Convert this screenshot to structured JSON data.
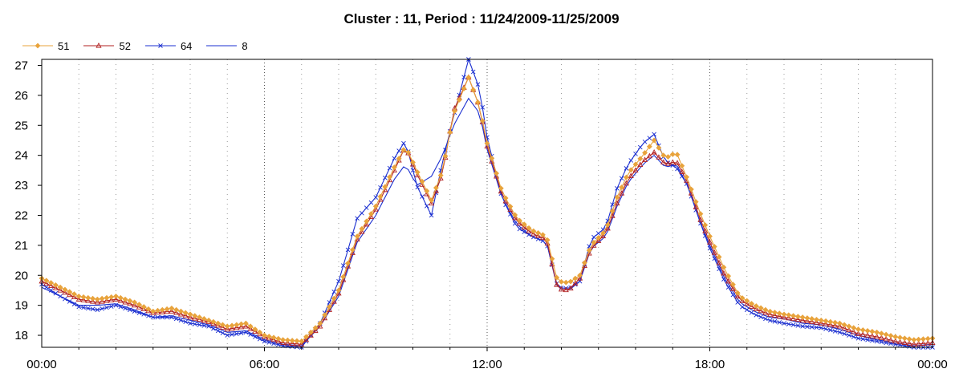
{
  "chart_data": {
    "type": "line",
    "title": "Cluster : 11, Period : 11/24/2009-11/25/2009",
    "xlabel": "",
    "ylabel": "",
    "xlim": [
      0,
      24
    ],
    "ylim": [
      17.6,
      27.2
    ],
    "x_ticks": [
      {
        "value": 0,
        "label": "00:00"
      },
      {
        "value": 6,
        "label": "06:00"
      },
      {
        "value": 12,
        "label": "12:00"
      },
      {
        "value": 18,
        "label": "18:00"
      },
      {
        "value": 24,
        "label": "00:00"
      }
    ],
    "y_ticks": [
      18,
      19,
      20,
      21,
      22,
      23,
      24,
      25,
      26,
      27
    ],
    "grid": "vertical dotted",
    "legend_position": "top-left",
    "sample_interval_hours": 0.125,
    "series": [
      {
        "name": "51",
        "color": "#e8a33c",
        "marker": "diamond",
        "points": [
          [
            0,
            19.9
          ],
          [
            0.5,
            19.6
          ],
          [
            1,
            19.3
          ],
          [
            1.5,
            19.2
          ],
          [
            2,
            19.3
          ],
          [
            2.5,
            19.1
          ],
          [
            3,
            18.8
          ],
          [
            3.5,
            18.9
          ],
          [
            4,
            18.7
          ],
          [
            4.5,
            18.5
          ],
          [
            5,
            18.3
          ],
          [
            5.5,
            18.4
          ],
          [
            6,
            18.0
          ],
          [
            6.5,
            17.85
          ],
          [
            7,
            17.8
          ],
          [
            7.5,
            18.4
          ],
          [
            8,
            19.5
          ],
          [
            8.5,
            21.3
          ],
          [
            9,
            22.3
          ],
          [
            9.5,
            23.6
          ],
          [
            9.8,
            24.3
          ],
          [
            10.1,
            23.5
          ],
          [
            10.5,
            22.5
          ],
          [
            10.8,
            23.5
          ],
          [
            11.1,
            25.4
          ],
          [
            11.5,
            26.6
          ],
          [
            11.8,
            25.6
          ],
          [
            12,
            24.4
          ],
          [
            12.4,
            22.8
          ],
          [
            12.8,
            21.9
          ],
          [
            13.2,
            21.5
          ],
          [
            13.6,
            21.3
          ],
          [
            13.9,
            19.8
          ],
          [
            14.2,
            19.75
          ],
          [
            14.5,
            20.0
          ],
          [
            14.8,
            21.0
          ],
          [
            15.2,
            21.5
          ],
          [
            15.5,
            22.6
          ],
          [
            15.8,
            23.4
          ],
          [
            16.2,
            24.0
          ],
          [
            16.5,
            24.5
          ],
          [
            16.8,
            23.9
          ],
          [
            17.1,
            24.1
          ],
          [
            17.4,
            23.2
          ],
          [
            17.7,
            22.2
          ],
          [
            18.0,
            21.3
          ],
          [
            18.4,
            20.2
          ],
          [
            18.8,
            19.3
          ],
          [
            19.2,
            19.0
          ],
          [
            19.6,
            18.8
          ],
          [
            20,
            18.7
          ],
          [
            20.5,
            18.6
          ],
          [
            21,
            18.5
          ],
          [
            21.5,
            18.4
          ],
          [
            22,
            18.2
          ],
          [
            22.5,
            18.1
          ],
          [
            23,
            17.95
          ],
          [
            23.5,
            17.85
          ],
          [
            24,
            17.9
          ]
        ]
      },
      {
        "name": "52",
        "color": "#b22222",
        "marker": "triangle",
        "points": [
          [
            0,
            19.8
          ],
          [
            0.5,
            19.5
          ],
          [
            1,
            19.2
          ],
          [
            1.5,
            19.1
          ],
          [
            2,
            19.2
          ],
          [
            2.5,
            19.0
          ],
          [
            3,
            18.75
          ],
          [
            3.5,
            18.8
          ],
          [
            4,
            18.6
          ],
          [
            4.5,
            18.45
          ],
          [
            5,
            18.2
          ],
          [
            5.5,
            18.3
          ],
          [
            6,
            17.95
          ],
          [
            6.5,
            17.75
          ],
          [
            7,
            17.7
          ],
          [
            7.5,
            18.3
          ],
          [
            8,
            19.4
          ],
          [
            8.5,
            21.2
          ],
          [
            9,
            22.2
          ],
          [
            9.5,
            23.5
          ],
          [
            9.8,
            24.3
          ],
          [
            10.1,
            23.4
          ],
          [
            10.5,
            22.4
          ],
          [
            10.8,
            23.4
          ],
          [
            11.1,
            25.5
          ],
          [
            11.5,
            26.6
          ],
          [
            11.8,
            25.6
          ],
          [
            12,
            24.3
          ],
          [
            12.4,
            22.7
          ],
          [
            12.8,
            21.8
          ],
          [
            13.2,
            21.4
          ],
          [
            13.6,
            21.2
          ],
          [
            13.9,
            19.55
          ],
          [
            14.2,
            19.5
          ],
          [
            14.5,
            19.9
          ],
          [
            14.8,
            20.9
          ],
          [
            15.2,
            21.4
          ],
          [
            15.5,
            22.4
          ],
          [
            15.8,
            23.2
          ],
          [
            16.2,
            23.8
          ],
          [
            16.5,
            24.1
          ],
          [
            16.8,
            23.7
          ],
          [
            17.1,
            23.8
          ],
          [
            17.4,
            23.1
          ],
          [
            17.7,
            22.0
          ],
          [
            18.0,
            21.1
          ],
          [
            18.4,
            20.0
          ],
          [
            18.8,
            19.2
          ],
          [
            19.2,
            18.9
          ],
          [
            19.6,
            18.7
          ],
          [
            20,
            18.6
          ],
          [
            20.5,
            18.5
          ],
          [
            21,
            18.4
          ],
          [
            21.5,
            18.3
          ],
          [
            22,
            18.05
          ],
          [
            22.5,
            17.95
          ],
          [
            23,
            17.8
          ],
          [
            23.5,
            17.7
          ],
          [
            24,
            17.75
          ]
        ]
      },
      {
        "name": "64",
        "color": "#1b2fd0",
        "marker": "x",
        "points": [
          [
            0,
            19.7
          ],
          [
            0.5,
            19.3
          ],
          [
            1,
            18.95
          ],
          [
            1.5,
            18.85
          ],
          [
            2,
            19.0
          ],
          [
            2.5,
            18.8
          ],
          [
            3,
            18.6
          ],
          [
            3.5,
            18.6
          ],
          [
            4,
            18.4
          ],
          [
            4.5,
            18.3
          ],
          [
            5,
            18.0
          ],
          [
            5.5,
            18.1
          ],
          [
            6,
            17.8
          ],
          [
            6.5,
            17.65
          ],
          [
            7,
            17.6
          ],
          [
            7.5,
            18.4
          ],
          [
            8,
            19.8
          ],
          [
            8.5,
            21.9
          ],
          [
            9,
            22.6
          ],
          [
            9.5,
            23.9
          ],
          [
            9.8,
            24.5
          ],
          [
            10.1,
            23.0
          ],
          [
            10.5,
            22.0
          ],
          [
            10.8,
            23.8
          ],
          [
            11.1,
            25.3
          ],
          [
            11.5,
            27.2
          ],
          [
            11.8,
            26.2
          ],
          [
            12,
            24.6
          ],
          [
            12.4,
            22.6
          ],
          [
            12.8,
            21.6
          ],
          [
            13.2,
            21.3
          ],
          [
            13.6,
            21.1
          ],
          [
            13.9,
            19.6
          ],
          [
            14.2,
            19.55
          ],
          [
            14.5,
            19.8
          ],
          [
            14.8,
            21.2
          ],
          [
            15.2,
            21.6
          ],
          [
            15.5,
            22.9
          ],
          [
            15.8,
            23.7
          ],
          [
            16.2,
            24.4
          ],
          [
            16.5,
            24.7
          ],
          [
            16.8,
            23.8
          ],
          [
            17.1,
            23.6
          ],
          [
            17.4,
            23.0
          ],
          [
            17.7,
            21.9
          ],
          [
            18.0,
            20.9
          ],
          [
            18.4,
            19.8
          ],
          [
            18.8,
            19.0
          ],
          [
            19.2,
            18.7
          ],
          [
            19.6,
            18.5
          ],
          [
            20,
            18.4
          ],
          [
            20.5,
            18.3
          ],
          [
            21,
            18.25
          ],
          [
            21.5,
            18.1
          ],
          [
            22,
            17.9
          ],
          [
            22.5,
            17.8
          ],
          [
            23,
            17.7
          ],
          [
            23.5,
            17.6
          ],
          [
            24,
            17.6
          ]
        ]
      },
      {
        "name": "8",
        "color": "#1b2fd0",
        "marker": "none",
        "points": [
          [
            0,
            19.6
          ],
          [
            0.5,
            19.3
          ],
          [
            1,
            19.0
          ],
          [
            1.5,
            19.0
          ],
          [
            2,
            19.05
          ],
          [
            2.5,
            18.85
          ],
          [
            3,
            18.6
          ],
          [
            3.5,
            18.65
          ],
          [
            4,
            18.5
          ],
          [
            4.5,
            18.35
          ],
          [
            5,
            18.1
          ],
          [
            5.5,
            18.15
          ],
          [
            6,
            17.85
          ],
          [
            6.5,
            17.7
          ],
          [
            7,
            17.65
          ],
          [
            7.5,
            18.3
          ],
          [
            8,
            19.3
          ],
          [
            8.5,
            21.1
          ],
          [
            9,
            22.0
          ],
          [
            9.5,
            23.2
          ],
          [
            9.8,
            23.7
          ],
          [
            10.1,
            23.0
          ],
          [
            10.5,
            23.3
          ],
          [
            10.8,
            24.0
          ],
          [
            11.1,
            25.0
          ],
          [
            11.5,
            25.9
          ],
          [
            11.8,
            25.4
          ],
          [
            12,
            24.2
          ],
          [
            12.4,
            22.6
          ],
          [
            12.8,
            21.7
          ],
          [
            13.2,
            21.3
          ],
          [
            13.6,
            21.1
          ],
          [
            13.9,
            19.55
          ],
          [
            14.2,
            19.5
          ],
          [
            14.5,
            19.8
          ],
          [
            14.8,
            20.9
          ],
          [
            15.2,
            21.3
          ],
          [
            15.5,
            22.3
          ],
          [
            15.8,
            23.1
          ],
          [
            16.2,
            23.7
          ],
          [
            16.5,
            24.0
          ],
          [
            16.8,
            23.6
          ],
          [
            17.1,
            23.7
          ],
          [
            17.4,
            23.0
          ],
          [
            17.7,
            21.9
          ],
          [
            18.0,
            21.0
          ],
          [
            18.4,
            19.9
          ],
          [
            18.8,
            19.1
          ],
          [
            19.2,
            18.8
          ],
          [
            19.6,
            18.6
          ],
          [
            20,
            18.55
          ],
          [
            20.5,
            18.4
          ],
          [
            21,
            18.35
          ],
          [
            21.5,
            18.2
          ],
          [
            22,
            18.0
          ],
          [
            22.5,
            17.85
          ],
          [
            23,
            17.75
          ],
          [
            23.5,
            17.65
          ],
          [
            24,
            17.7
          ]
        ]
      }
    ]
  }
}
